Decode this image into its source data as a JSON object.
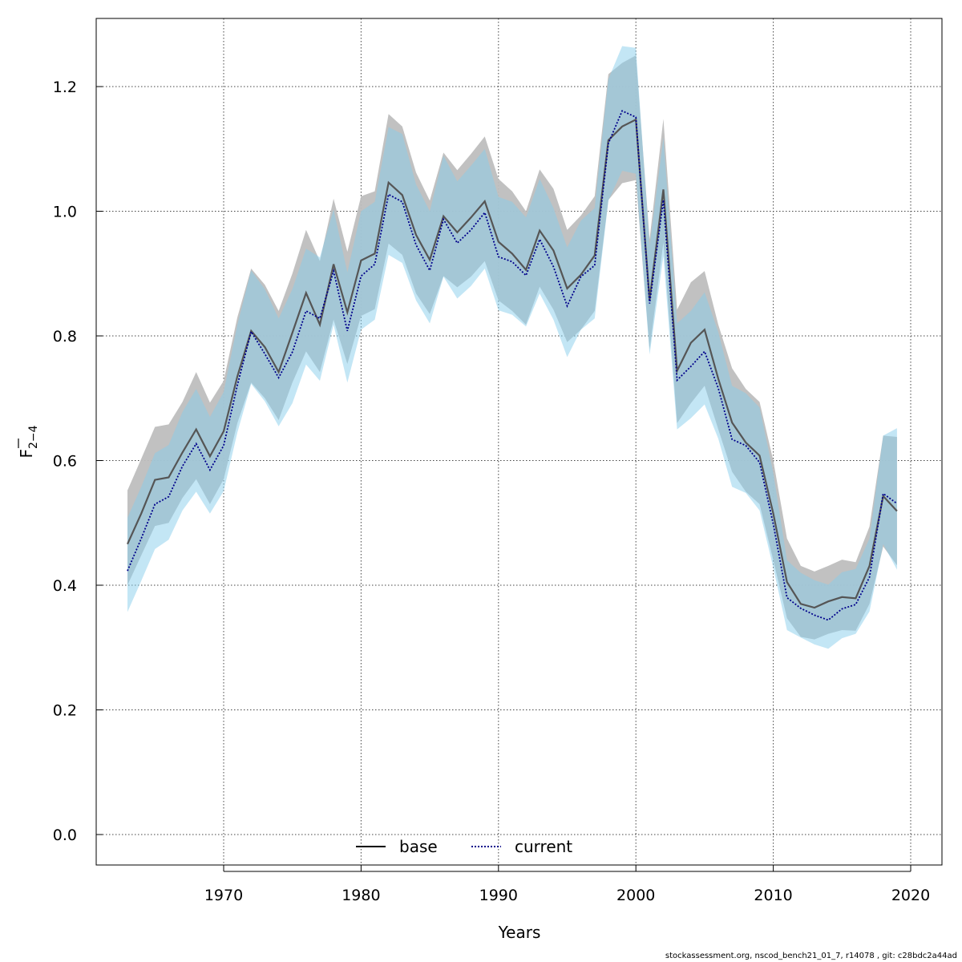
{
  "chart_data": {
    "type": "line",
    "xlabel": "Years",
    "ylabel": {
      "main": "F",
      "subscript": "2−4"
    },
    "xlim": [
      1961,
      2022
    ],
    "ylim": [
      -0.05,
      1.31
    ],
    "x_ticks": [
      1970,
      1980,
      1990,
      2000,
      2010,
      2020
    ],
    "y_ticks": [
      0.0,
      0.2,
      0.4,
      0.6,
      0.8,
      1.0,
      1.2
    ],
    "y_tick_labels": [
      "0.0",
      "0.2",
      "0.4",
      "0.6",
      "0.8",
      "1.0",
      "1.2"
    ],
    "grid": true,
    "legend_position": "bottom-center",
    "years": [
      1963,
      1964,
      1965,
      1966,
      1967,
      1968,
      1969,
      1970,
      1971,
      1972,
      1973,
      1974,
      1975,
      1976,
      1977,
      1978,
      1979,
      1980,
      1981,
      1982,
      1983,
      1984,
      1985,
      1986,
      1987,
      1988,
      1989,
      1990,
      1991,
      1992,
      1993,
      1994,
      1995,
      1996,
      1997,
      1998,
      1999,
      2000,
      2001,
      2002,
      2003,
      2004,
      2005,
      2006,
      2007,
      2008,
      2009,
      2010,
      2011,
      2012,
      2013,
      2014,
      2015,
      2016,
      2017,
      2018,
      2019
    ],
    "series": [
      {
        "name": "base",
        "line_color": "#555555",
        "band_color": "#bebebe",
        "line_style": "solid",
        "values": [
          0.466,
          0.515,
          0.569,
          0.573,
          0.613,
          0.65,
          0.607,
          0.647,
          0.735,
          0.808,
          0.782,
          0.742,
          0.805,
          0.869,
          0.818,
          0.915,
          0.838,
          0.921,
          0.932,
          1.046,
          1.026,
          0.962,
          0.922,
          0.992,
          0.966,
          0.99,
          1.016,
          0.951,
          0.932,
          0.906,
          0.969,
          0.937,
          0.876,
          0.898,
          0.929,
          1.114,
          1.136,
          1.147,
          0.858,
          1.035,
          0.744,
          0.789,
          0.81,
          0.731,
          0.661,
          0.629,
          0.608,
          0.515,
          0.405,
          0.37,
          0.364,
          0.374,
          0.381,
          0.379,
          0.431,
          0.543,
          0.519
        ],
        "lower": [
          0.4,
          0.448,
          0.495,
          0.5,
          0.54,
          0.57,
          0.53,
          0.57,
          0.66,
          0.725,
          0.7,
          0.665,
          0.725,
          0.775,
          0.742,
          0.826,
          0.755,
          0.832,
          0.843,
          0.948,
          0.93,
          0.868,
          0.835,
          0.896,
          0.878,
          0.895,
          0.92,
          0.857,
          0.84,
          0.818,
          0.879,
          0.842,
          0.79,
          0.81,
          0.84,
          1.018,
          1.045,
          1.05,
          0.778,
          0.95,
          0.66,
          0.692,
          0.72,
          0.65,
          0.582,
          0.55,
          0.53,
          0.44,
          0.347,
          0.317,
          0.313,
          0.322,
          0.328,
          0.327,
          0.37,
          0.462,
          0.432
        ],
        "upper": [
          0.552,
          0.603,
          0.654,
          0.658,
          0.694,
          0.742,
          0.693,
          0.728,
          0.83,
          0.908,
          0.882,
          0.84,
          0.9,
          0.97,
          0.92,
          1.02,
          0.935,
          1.024,
          1.032,
          1.156,
          1.136,
          1.062,
          1.017,
          1.094,
          1.066,
          1.092,
          1.12,
          1.052,
          1.032,
          1.0,
          1.067,
          1.036,
          0.97,
          0.993,
          1.024,
          1.22,
          1.238,
          1.25,
          0.955,
          1.148,
          0.842,
          0.886,
          0.904,
          0.818,
          0.748,
          0.715,
          0.694,
          0.6,
          0.475,
          0.431,
          0.422,
          0.431,
          0.441,
          0.437,
          0.494,
          0.64,
          0.638
        ]
      },
      {
        "name": "current",
        "line_color": "#00008b",
        "band_color": "#87ceeb",
        "line_style": "dotted",
        "values": [
          0.423,
          0.475,
          0.53,
          0.542,
          0.591,
          0.627,
          0.585,
          0.624,
          0.721,
          0.807,
          0.771,
          0.733,
          0.774,
          0.84,
          0.828,
          0.904,
          0.808,
          0.896,
          0.915,
          1.027,
          1.015,
          0.946,
          0.905,
          0.987,
          0.949,
          0.97,
          0.998,
          0.927,
          0.919,
          0.897,
          0.955,
          0.911,
          0.848,
          0.895,
          0.913,
          1.109,
          1.161,
          1.151,
          0.852,
          1.018,
          0.729,
          0.751,
          0.775,
          0.716,
          0.634,
          0.624,
          0.597,
          0.498,
          0.38,
          0.363,
          0.352,
          0.344,
          0.362,
          0.369,
          0.413,
          0.547,
          0.531
        ],
        "lower": [
          0.357,
          0.407,
          0.458,
          0.473,
          0.52,
          0.55,
          0.515,
          0.551,
          0.645,
          0.723,
          0.695,
          0.655,
          0.692,
          0.754,
          0.728,
          0.818,
          0.725,
          0.81,
          0.826,
          0.93,
          0.917,
          0.857,
          0.82,
          0.895,
          0.86,
          0.88,
          0.908,
          0.841,
          0.834,
          0.815,
          0.868,
          0.826,
          0.766,
          0.81,
          0.828,
          1.017,
          1.065,
          1.06,
          0.77,
          0.928,
          0.65,
          0.668,
          0.69,
          0.635,
          0.558,
          0.548,
          0.52,
          0.428,
          0.328,
          0.316,
          0.305,
          0.298,
          0.315,
          0.322,
          0.358,
          0.466,
          0.425
        ],
        "upper": [
          0.508,
          0.558,
          0.612,
          0.625,
          0.678,
          0.715,
          0.67,
          0.71,
          0.818,
          0.905,
          0.875,
          0.828,
          0.875,
          0.94,
          0.926,
          1.003,
          0.902,
          1.0,
          1.015,
          1.135,
          1.124,
          1.043,
          1.0,
          1.089,
          1.048,
          1.073,
          1.1,
          1.023,
          1.015,
          0.99,
          1.052,
          1.005,
          0.942,
          0.985,
          1.005,
          1.212,
          1.265,
          1.262,
          0.944,
          1.118,
          0.82,
          0.84,
          0.87,
          0.806,
          0.72,
          0.708,
          0.685,
          0.58,
          0.44,
          0.42,
          0.408,
          0.401,
          0.421,
          0.426,
          0.475,
          0.64,
          0.652
        ]
      }
    ]
  },
  "footnote": "stockassessment.org, nscod_bench21_01_7, r14078 , git: c28bdc2a44ad"
}
